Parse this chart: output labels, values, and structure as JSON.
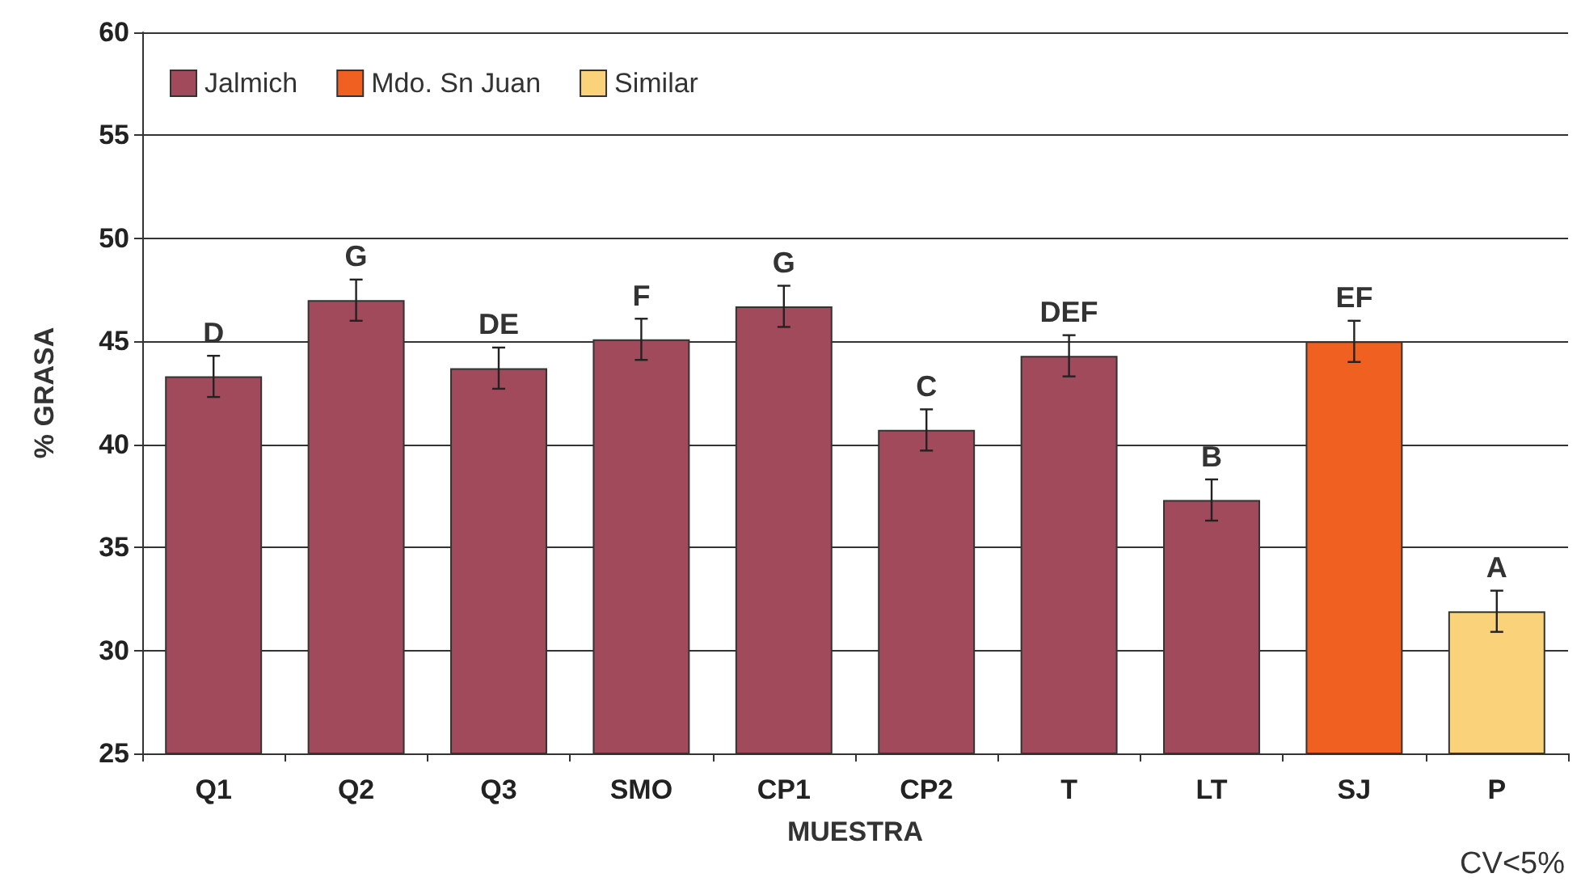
{
  "chart_data": {
    "type": "bar",
    "xlabel": "MUESTRA",
    "ylabel": "% GRASA",
    "categories": [
      "Q1",
      "Q2",
      "Q3",
      "SMO",
      "CP1",
      "CP2",
      "T",
      "LT",
      "SJ",
      "P"
    ],
    "series": [
      {
        "name": "Jalmich",
        "color": "#a04a5c",
        "values": [
          43.3,
          47.0,
          43.7,
          45.1,
          46.7,
          40.7,
          44.3,
          37.3,
          null,
          null
        ],
        "errors": [
          1.0,
          1.0,
          1.0,
          1.0,
          1.0,
          1.0,
          1.0,
          1.0,
          null,
          null
        ],
        "value_labels": [
          "D",
          "G",
          "DE",
          "F",
          "G",
          "C",
          "DEF",
          "B",
          null,
          null
        ]
      },
      {
        "name": "Mdo. Sn Juan",
        "color": "#f06020",
        "values": [
          null,
          null,
          null,
          null,
          null,
          null,
          null,
          null,
          45.0,
          null
        ],
        "errors": [
          null,
          null,
          null,
          null,
          null,
          null,
          null,
          null,
          1.0,
          null
        ],
        "value_labels": [
          null,
          null,
          null,
          null,
          null,
          null,
          null,
          null,
          "EF",
          null
        ]
      },
      {
        "name": "Similar",
        "color": "#fad27a",
        "values": [
          null,
          null,
          null,
          null,
          null,
          null,
          null,
          null,
          null,
          31.9
        ],
        "errors": [
          null,
          null,
          null,
          null,
          null,
          null,
          null,
          null,
          null,
          1.0
        ],
        "value_labels": [
          null,
          null,
          null,
          null,
          null,
          null,
          null,
          null,
          null,
          "A"
        ]
      }
    ],
    "ylim": [
      25,
      60
    ],
    "yticks": [
      25,
      30,
      35,
      40,
      45,
      50,
      55,
      60
    ],
    "grid": "y",
    "legend": "top left",
    "annotations": [
      "CV<5%"
    ]
  }
}
